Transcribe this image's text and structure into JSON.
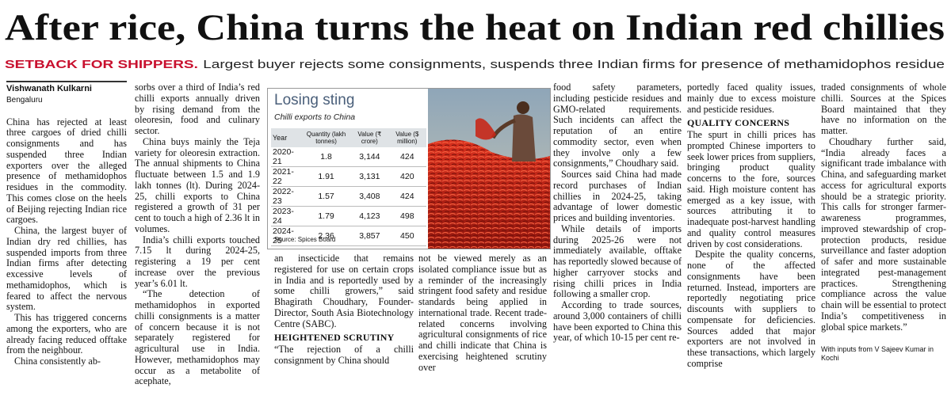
{
  "header": {
    "title": "After rice, China turns the heat on Indian red chillies",
    "kicker": "SETBACK FOR SHIPPERS.",
    "subtitle": "Largest buyer rejects some consignments, suspends three Indian firms for presence of methamidophos residue"
  },
  "byline": {
    "author": "Vishwanath Kulkarni",
    "location": "Bengaluru"
  },
  "columns": [
    [
      "China has rejected at least three cargoes of dried chilli consignments and has suspended three Indian exporters over the alleged presence of methamidophos residues in the commodity. This comes close on the heels of Beijing rejecting Indian rice cargoes.",
      "China, the largest buyer of Indian dry red chillies, has suspended imports from three Indian firms after detecting excessive levels of methamidophos, which is feared to affect the nervous system.",
      "This has triggered concerns among the exporters, who are already facing reduced offtake from the neighbour.",
      "China consistently ab-"
    ],
    [
      "sorbs over a third of India’s red chilli exports annually driven by rising demand from the oleoresin, food and culinary sector.",
      "China buys mainly the Teja variety for oleoresin extraction. The annual shipments to China fluctuate between 1.5 and 1.9 lakh tonnes (lt). During 2024-25, chilli exports to China registered a growth of 31 per cent to touch a high of 2.36 lt in volumes.",
      "India’s chilli exports touched 7.15 lt during 2024-25, registering a 19 per cent increase over the previous year’s 6.01 lt.",
      "“The detection of methamidophos in exported chilli consignments is a matter of concern because it is not separately registered for agricultural use in India. However, methamidophos may occur as a metabolite of acephate,"
    ],
    [
      "an insecticide that remains registered for use on certain crops in India and is reportedly used by some chilli growers,” said Bhagirath Choudhary, Founder-Director, South Asia Biotechnology Centre (SABC).",
      "“The rejection of a chilli consignment by China should"
    ],
    [
      "not be viewed merely as an isolated compliance issue but as a reminder of the increasingly stringent food safety and residue standards being applied in international trade. Recent trade-related concerns involving agricultural consignments of rice and chilli indicate that China is exercising heightened scrutiny over"
    ],
    [
      "food safety parameters, including pesticide residues and GMO-related requirements. Such incidents can affect the reputation of an entire commodity sector, even when they involve only a few consignments,” Choudhary said.",
      "Sources said China had made record purchases of Indian chillies in 2024-25, taking advantage of lower domestic prices and building inventories.",
      "While details of imports during 2025-26 were not immediately available, offtake has reportedly slowed because of higher carryover stocks and rising chilli prices in India following a smaller crop.",
      "According to trade sources, around 3,000 containers of chilli have been exported to China this year, of which 10-15 per cent re-"
    ],
    [
      "portedly faced quality issues, mainly due to excess moisture and pesticide residues.",
      "The spurt in chilli prices has prompted Chinese importers to seek lower prices from suppliers, bringing product quality concerns to the fore, sources said. High moisture content has emerged as a key issue, with sources attributing it to inadequate post-harvest handling and quality control measures driven by cost considerations.",
      "Despite the quality concerns, none of the affected consignments have been returned. Instead, importers are reportedly negotiating price discounts with suppliers to compensate for deficiencies. Sources added that major exporters are not involved in these transactions, which largely comprise"
    ],
    [
      "traded consignments of whole chilli. Sources at the Spices Board maintained that they have no information on the matter.",
      "Choudhary further said, “India already faces a significant trade imbalance with China, and safeguarding market access for agricultural exports should be a strategic priority. This calls for stronger farmer-awareness programmes, improved stewardship of crop-protection products, residue surveillance and faster adoption of safer and more sustainable integrated pest-management practices. Strengthening compliance across the value chain will be essential to protect India’s competitiveness in global spice markets.”"
    ]
  ],
  "subheads": [
    "HEIGHTENED SCRUTINY",
    "QUALITY CONCERNS"
  ],
  "credit": "With inputs from V Sajeev Kumar in Kochi",
  "table": {
    "title": "Losing sting",
    "subtitle": "Chilli exports to China",
    "headers": [
      "Year",
      "Quantity (lakh tonnes)",
      "Value (₹ crore)",
      "Value ($ million)"
    ],
    "rows": [
      [
        "2020-21",
        "1.8",
        "3,144",
        "424"
      ],
      [
        "2021-22",
        "1.91",
        "3,131",
        "420"
      ],
      [
        "2022-23",
        "1.57",
        "3,408",
        "424"
      ],
      [
        "2023-24",
        "1.79",
        "4,123",
        "498"
      ],
      [
        "2024-25",
        "2.36",
        "3,857",
        "450"
      ]
    ],
    "source": "Source: Spices Board"
  }
}
